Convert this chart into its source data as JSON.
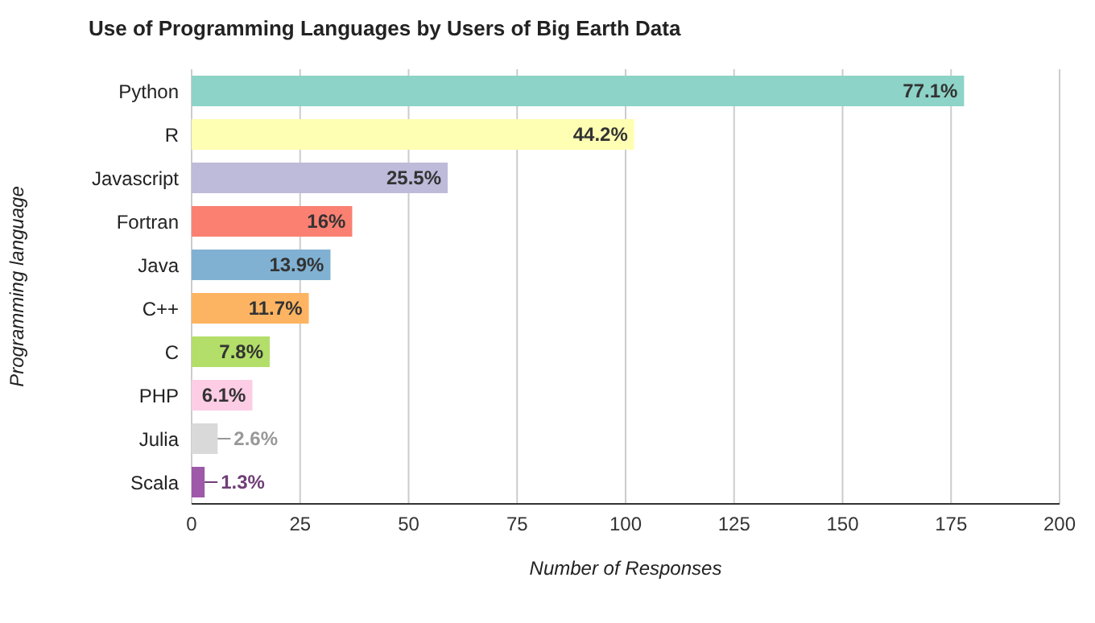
{
  "chart_data": {
    "type": "bar",
    "orientation": "horizontal",
    "title": "Use of Programming Languages by Users of Big Earth Data",
    "xlabel": "Number of Responses",
    "ylabel": "Programming language",
    "categories": [
      "Python",
      "R",
      "Javascript",
      "Fortran",
      "Java",
      "C++",
      "C",
      "PHP",
      "Julia",
      "Scala"
    ],
    "values": [
      178,
      102,
      59,
      37,
      32,
      27,
      18,
      14,
      6,
      3
    ],
    "colors": [
      "#8dd3c7",
      "#ffffb3",
      "#bebada",
      "#fb8072",
      "#80b1d3",
      "#fdb462",
      "#b3de69",
      "#fccde5",
      "#d9d9d9",
      "#9e59a8"
    ],
    "annotations": [
      {
        "text": "77.1%",
        "x": 178,
        "y": "Python"
      },
      {
        "text": "44.2%",
        "x": 102,
        "y": "R"
      },
      {
        "text": "25.5%",
        "x": 59,
        "y": "Javascript"
      },
      {
        "text": "16%",
        "x": 37,
        "y": "Fortran"
      },
      {
        "text": "13.9%",
        "x": 32,
        "y": "Java"
      },
      {
        "text": "11.7%",
        "x": 27,
        "y": "C++"
      },
      {
        "text": "7.8%",
        "x": 18,
        "y": "C"
      },
      {
        "text": "6.1%",
        "x": 14,
        "y": "PHP"
      },
      {
        "text": "2.6%",
        "x": 6,
        "y": "Julia"
      },
      {
        "text": "1.3%",
        "x": 3,
        "y": "Scala"
      }
    ],
    "xlim": [
      0,
      200
    ],
    "xticks": [
      0,
      25,
      50,
      75,
      100,
      125,
      150,
      175,
      200
    ],
    "grid": "x",
    "legend": false
  }
}
